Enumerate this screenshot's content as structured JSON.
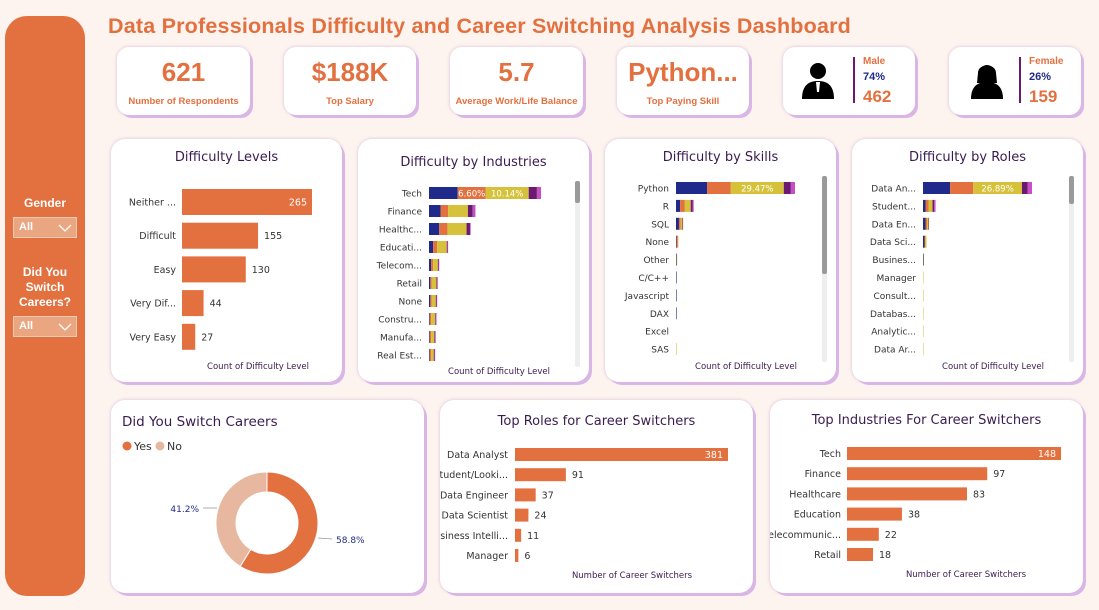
{
  "title": "Data Professionals Difficulty and Career Switching Analysis Dashboard",
  "colors": {
    "accent": "#e3703f",
    "navy": "#1f2a8a",
    "yellow": "#d5c23a",
    "purple": "#6a1b6f",
    "magenta": "#c84ec8",
    "light": "#eaa581"
  },
  "sidebar": {
    "gender_label": "Gender",
    "gender_value": "All",
    "switch_label": [
      "Did You",
      "Switch",
      "Careers?"
    ],
    "switch_value": "All"
  },
  "kpis": [
    {
      "value": "621",
      "label": "Number of Respondents"
    },
    {
      "value": "$188K",
      "label": "Top Salary"
    },
    {
      "value": "5.7",
      "label": "Average Work/Life Balance"
    },
    {
      "value": "Python...",
      "label": "Top Paying Skill"
    }
  ],
  "gender": {
    "male": {
      "title": "Male",
      "pct": "74%",
      "count": "462"
    },
    "female": {
      "title": "Female",
      "pct": "26%",
      "count": "159"
    }
  },
  "chart_data": [
    {
      "id": "difficulty-levels",
      "type": "bar",
      "orientation": "horizontal",
      "title": "Difficulty Levels",
      "categories": [
        "Neither ...",
        "Difficult",
        "Easy",
        "Very Dif...",
        "Very Easy"
      ],
      "values": [
        265,
        155,
        130,
        44,
        27
      ],
      "xlabel": "Count of Difficulty Level",
      "xlim": [
        0,
        265
      ]
    },
    {
      "id": "difficulty-industries",
      "type": "bar",
      "stacked": true,
      "orientation": "horizontal",
      "title": "Difficulty by Industries",
      "categories": [
        "Tech",
        "Finance",
        "Healthc...",
        "Educati...",
        "Telecom...",
        "Retail",
        "None",
        "Constru...",
        "Manufa...",
        "Real Est..."
      ],
      "series": [
        {
          "values": [
            42,
            17,
            15,
            6,
            3,
            2,
            2,
            1,
            1,
            1
          ]
        },
        {
          "values": [
            41,
            11,
            12,
            6,
            3,
            2,
            2,
            2,
            2,
            2
          ]
        },
        {
          "values": [
            63,
            29,
            28,
            14,
            7,
            7,
            6,
            6,
            5,
            4
          ]
        },
        {
          "values": [
            12,
            7,
            5,
            1,
            1,
            1,
            1,
            1,
            1,
            1
          ]
        },
        {
          "values": [
            6,
            4,
            1,
            1,
            1,
            1,
            1,
            1,
            1,
            1
          ]
        }
      ],
      "data_labels": [
        {
          "category": "Tech",
          "series_index": 1,
          "text": "6.60%"
        },
        {
          "category": "Tech",
          "series_index": 2,
          "text": "10.14%"
        }
      ],
      "xlabel": "Count of Difficulty Level"
    },
    {
      "id": "difficulty-skills",
      "type": "bar",
      "stacked": true,
      "orientation": "horizontal",
      "title": "Difficulty by Skills",
      "categories": [
        "Python",
        "R",
        "SQL",
        "None",
        "Other",
        "C/C++",
        "Javascript",
        "DAX",
        "Excel",
        "SAS"
      ],
      "series": [
        {
          "values": [
            53,
            7,
            5,
            1,
            1,
            1,
            1,
            1,
            0,
            0
          ]
        },
        {
          "values": [
            40,
            8,
            3,
            2,
            0,
            0,
            0,
            0,
            0,
            0
          ]
        },
        {
          "values": [
            90,
            10,
            3,
            1,
            1,
            0,
            0,
            0,
            0,
            1
          ]
        },
        {
          "values": [
            12,
            3,
            1,
            0,
            0,
            0,
            0,
            0,
            0,
            0
          ]
        },
        {
          "values": [
            7,
            2,
            0,
            0,
            0,
            0,
            0,
            0,
            0,
            0
          ]
        }
      ],
      "data_labels": [
        {
          "category": "Python",
          "series_index": 2,
          "text": "29.47%"
        }
      ],
      "xlabel": "Count of Difficulty Level"
    },
    {
      "id": "difficulty-roles",
      "type": "bar",
      "stacked": true,
      "orientation": "horizontal",
      "title": "Difficulty by Roles",
      "categories": [
        "Data An...",
        "Student...",
        "Data En...",
        "Data Sci...",
        "Busines...",
        "Manager",
        "Consult...",
        "Databas...",
        "Analytic...",
        "Data Ar..."
      ],
      "series": [
        {
          "values": [
            54,
            5,
            5,
            3,
            1,
            0,
            0,
            0,
            0,
            0
          ]
        },
        {
          "values": [
            46,
            6,
            3,
            1,
            0,
            0,
            0,
            0,
            0,
            0
          ]
        },
        {
          "values": [
            97,
            8,
            3,
            3,
            1,
            1,
            1,
            1,
            1,
            1
          ]
        },
        {
          "values": [
            11,
            3,
            1,
            0,
            0,
            0,
            0,
            0,
            0,
            0
          ]
        },
        {
          "values": [
            9,
            3,
            0,
            0,
            0,
            0,
            0,
            0,
            0,
            0
          ]
        }
      ],
      "data_labels": [
        {
          "category": "Data An...",
          "series_index": 2,
          "text": "26.89%"
        }
      ],
      "xlabel": "Count of Difficulty Level"
    },
    {
      "id": "switch-careers",
      "type": "pie",
      "donut": true,
      "title": "Did You Switch Careers",
      "categories": [
        "Yes",
        "No"
      ],
      "values": [
        58.8,
        41.2
      ],
      "labels": [
        "58.8%",
        "41.2%"
      ],
      "legend": "top-left"
    },
    {
      "id": "top-roles",
      "type": "bar",
      "orientation": "horizontal",
      "title": "Top Roles for Career Switchers",
      "categories": [
        "Data Analyst",
        "Student/Looki...",
        "Data Engineer",
        "Data Scientist",
        "Business Intelli...",
        "Manager"
      ],
      "values": [
        381,
        91,
        37,
        24,
        11,
        6
      ],
      "xlabel": "Number of Career Switchers",
      "xlim": [
        0,
        381
      ]
    },
    {
      "id": "top-industries",
      "type": "bar",
      "orientation": "horizontal",
      "title": "Top Industries For Career Switchers",
      "categories": [
        "Tech",
        "Finance",
        "Healthcare",
        "Education",
        "Telecommunic...",
        "Retail"
      ],
      "values": [
        148,
        97,
        83,
        38,
        22,
        18
      ],
      "xlabel": "Number of Career Switchers",
      "xlim": [
        0,
        148
      ]
    }
  ]
}
